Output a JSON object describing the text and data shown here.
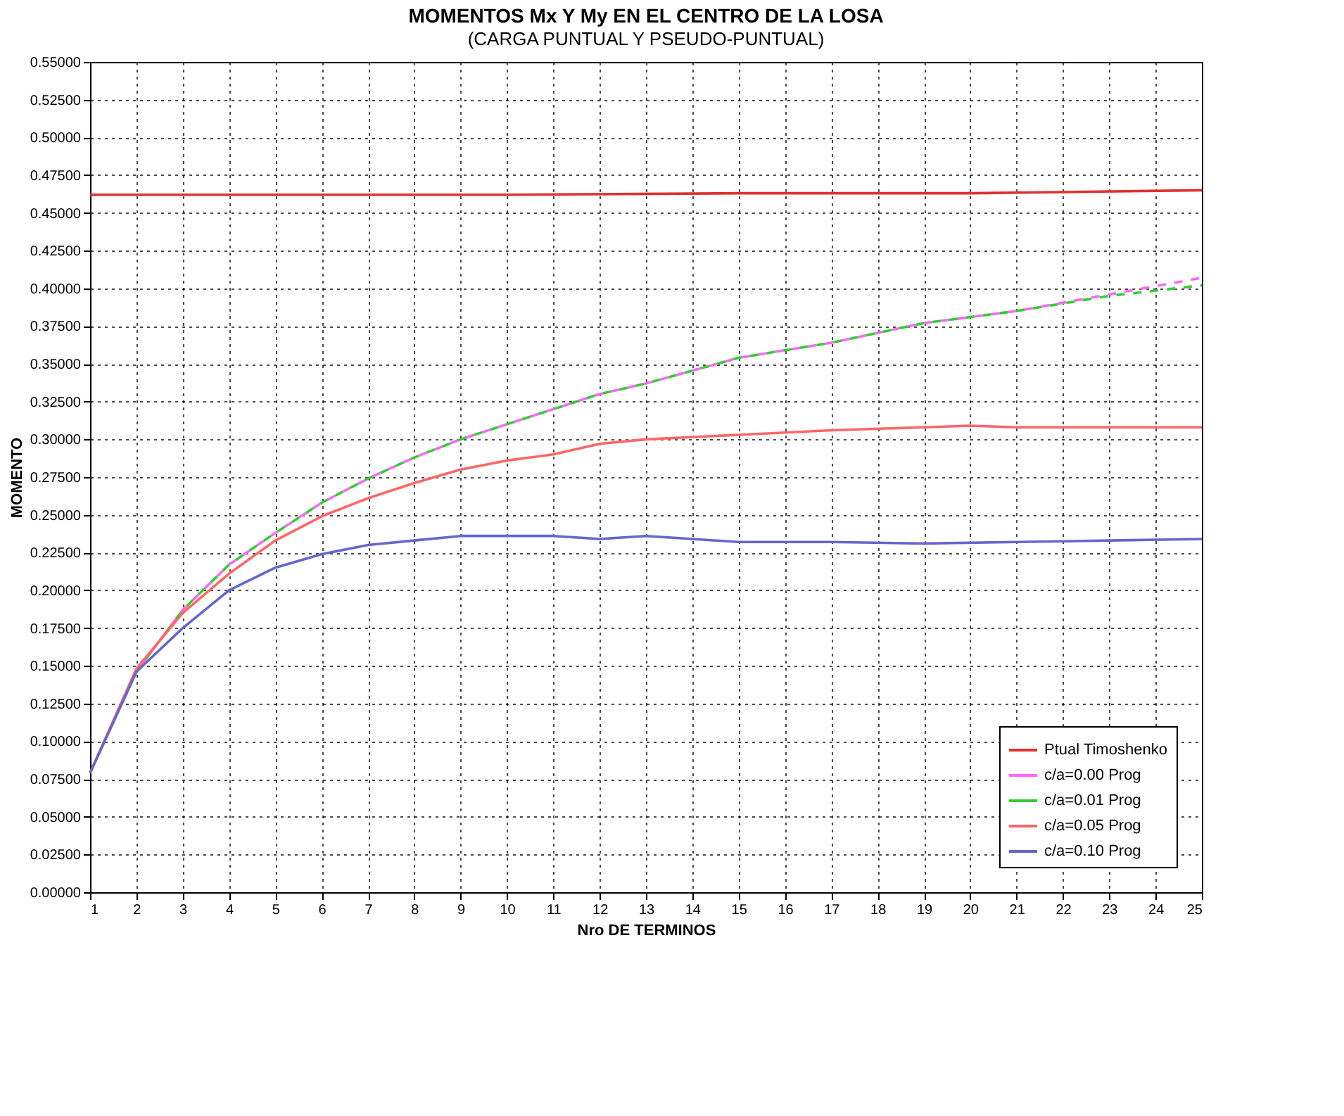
{
  "chart_data": {
    "type": "line",
    "title": "MOMENTOS Mx Y My EN EL CENTRO DE LA LOSA",
    "subtitle": "(CARGA PUNTUAL Y PSEUDO-PUNTUAL)",
    "xlabel": "Nro DE TERMINOS",
    "ylabel": "MOMENTO",
    "xlim": [
      1,
      25
    ],
    "xticks": [
      1,
      2,
      3,
      4,
      5,
      6,
      7,
      8,
      9,
      10,
      11,
      12,
      13,
      14,
      15,
      16,
      17,
      18,
      19,
      20,
      21,
      22,
      23,
      24,
      25
    ],
    "ylim": [
      0,
      0.55
    ],
    "yticks": [
      {
        "value": 0,
        "label": "0.00000"
      },
      {
        "value": 0.025,
        "label": "0.02500"
      },
      {
        "value": 0.05,
        "label": "0.05000"
      },
      {
        "value": 0.075,
        "label": "0.07500"
      },
      {
        "value": 0.1,
        "label": "0.10000"
      },
      {
        "value": 0.125,
        "label": "0.12500"
      },
      {
        "value": 0.15,
        "label": "0.15000"
      },
      {
        "value": 0.175,
        "label": "0.17500"
      },
      {
        "value": 0.2,
        "label": "0.20000"
      },
      {
        "value": 0.225,
        "label": "0.22500"
      },
      {
        "value": 0.25,
        "label": "0.25000"
      },
      {
        "value": 0.275,
        "label": "0.27500"
      },
      {
        "value": 0.3,
        "label": "0.30000"
      },
      {
        "value": 0.325,
        "label": "0.32500"
      },
      {
        "value": 0.35,
        "label": "0.35000"
      },
      {
        "value": 0.375,
        "label": "0.37500"
      },
      {
        "value": 0.4,
        "label": "0.40000"
      },
      {
        "value": 0.425,
        "label": "0.42500"
      },
      {
        "value": 0.45,
        "label": "0.45000"
      },
      {
        "value": 0.475,
        "label": "0.47500"
      },
      {
        "value": 0.5,
        "label": "0.50000"
      },
      {
        "value": 0.525,
        "label": "0.52500"
      },
      {
        "value": 0.55,
        "label": "0.55000"
      }
    ],
    "grid": true,
    "legend": "bottom right",
    "series": [
      {
        "name": "Ptual Timoshenko",
        "color": "#e03030",
        "line_style": "solid",
        "x": [
          1,
          5,
          10,
          15,
          20,
          25
        ],
        "values": [
          0.462,
          0.462,
          0.462,
          0.463,
          0.463,
          0.465
        ]
      },
      {
        "name": "c/a=0.00 Prog",
        "color": "#ff66ff",
        "line_style": "dashed",
        "x": [
          1,
          2,
          3,
          4,
          5,
          6,
          7,
          8,
          9,
          10,
          11,
          12,
          13,
          15,
          17,
          19,
          21,
          23,
          25
        ],
        "values": [
          0.079,
          0.146,
          0.187,
          0.217,
          0.238,
          0.258,
          0.274,
          0.288,
          0.3,
          0.31,
          0.32,
          0.33,
          0.337,
          0.354,
          0.364,
          0.377,
          0.385,
          0.396,
          0.407
        ]
      },
      {
        "name": "c/a=0.01 Prog",
        "color": "#33cc33",
        "line_style": "dashed",
        "x": [
          1,
          2,
          3,
          4,
          5,
          6,
          7,
          8,
          9,
          10,
          11,
          12,
          13,
          15,
          17,
          19,
          21,
          23,
          25
        ],
        "values": [
          0.079,
          0.146,
          0.187,
          0.217,
          0.238,
          0.258,
          0.274,
          0.288,
          0.3,
          0.31,
          0.32,
          0.33,
          0.337,
          0.354,
          0.364,
          0.377,
          0.385,
          0.395,
          0.402
        ]
      },
      {
        "name": "c/a=0.05 Prog",
        "color": "#ff6666",
        "line_style": "solid",
        "x": [
          1,
          2,
          3,
          4,
          5,
          6,
          7,
          8,
          9,
          10,
          11,
          12,
          13,
          15,
          17,
          19,
          20,
          21,
          23,
          25
        ],
        "values": [
          0.079,
          0.148,
          0.185,
          0.211,
          0.233,
          0.249,
          0.261,
          0.271,
          0.28,
          0.286,
          0.29,
          0.297,
          0.3,
          0.303,
          0.306,
          0.308,
          0.309,
          0.308,
          0.308,
          0.308
        ]
      },
      {
        "name": "c/a=0.10 Prog",
        "color": "#6666cc",
        "line_style": "solid",
        "x": [
          1,
          2,
          3,
          4,
          5,
          6,
          7,
          8,
          9,
          10,
          11,
          12,
          13,
          14,
          15,
          17,
          19,
          21,
          23,
          25
        ],
        "values": [
          0.079,
          0.146,
          0.175,
          0.2,
          0.215,
          0.224,
          0.23,
          0.233,
          0.236,
          0.236,
          0.236,
          0.234,
          0.236,
          0.234,
          0.232,
          0.232,
          0.231,
          0.232,
          0.233,
          0.234
        ]
      }
    ]
  }
}
